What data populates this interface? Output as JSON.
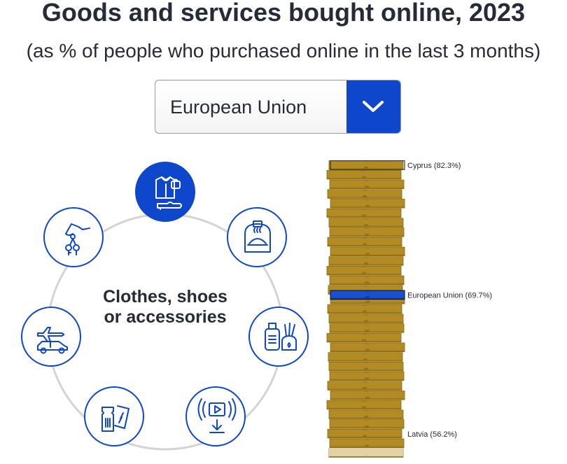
{
  "title": "Goods and services bought online, 2023",
  "subtitle": "(as % of people who purchased online in the last 3 months)",
  "selector": {
    "selected": "European Union",
    "icon": "chevron-down-icon"
  },
  "center": {
    "line1": "Clothes, shoes",
    "line2": "or accessories"
  },
  "categories": [
    {
      "icon": "clothes-shoes-icon",
      "active": true
    },
    {
      "icon": "food-delivery-icon",
      "active": false
    },
    {
      "icon": "cosmetics-icon",
      "active": false
    },
    {
      "icon": "streaming-download-icon",
      "active": false
    },
    {
      "icon": "tickets-icon",
      "active": false
    },
    {
      "icon": "travel-icon",
      "active": false
    },
    {
      "icon": "rental-keys-icon",
      "active": false
    }
  ],
  "colors": {
    "accent": "#0e47cb",
    "coin": "#b38b23",
    "coin_dark": "#8a6a16",
    "ring": "#d4d4d4"
  },
  "chart_data": {
    "type": "bar",
    "labels": [
      {
        "text": "Cyprus (82.3%)",
        "value": 82.3,
        "highlight": false
      },
      {
        "text": "European Union (69.7%)",
        "value": 69.7,
        "highlight": true
      },
      {
        "text": "Latvia (56.2%)",
        "value": 56.2,
        "highlight": false
      }
    ]
  }
}
